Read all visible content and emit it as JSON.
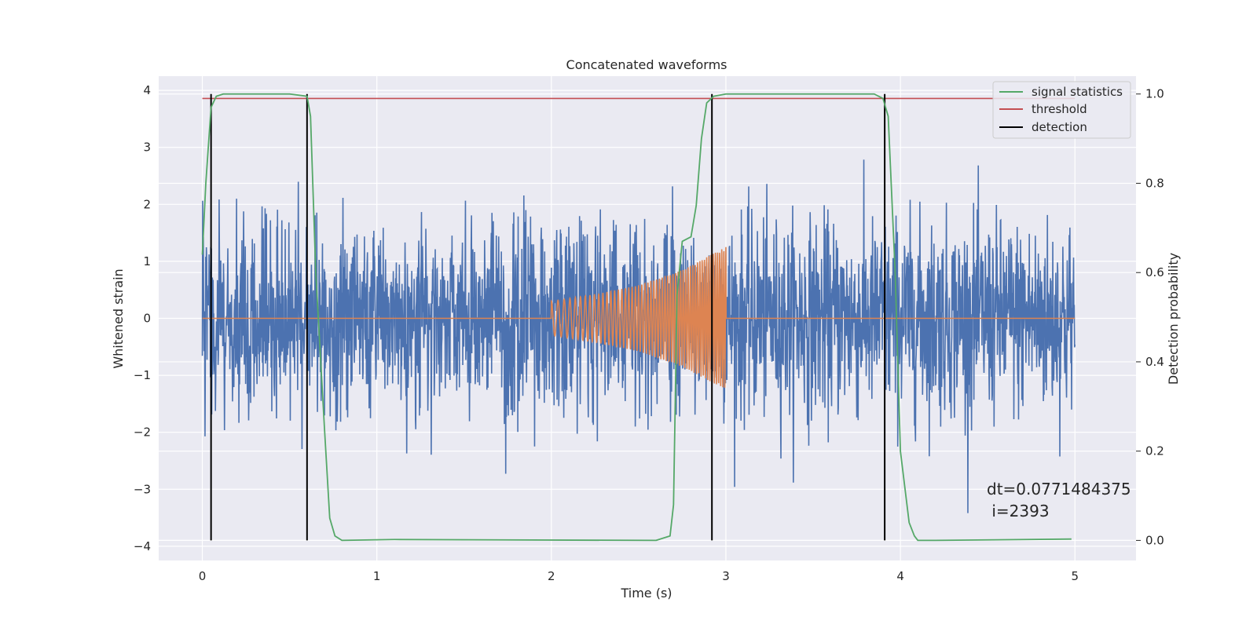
{
  "chart_data": {
    "type": "line",
    "title": "Concatenated waveforms",
    "xlabel": "Time (s)",
    "ylabel": "Whitened strain",
    "ylabel_right": "Detection probability",
    "xlim": [
      -0.25,
      5.35
    ],
    "ylim": [
      -4.25,
      4.25
    ],
    "ylim_right": [
      -0.045,
      1.04
    ],
    "x_ticks": [
      "0",
      "1",
      "2",
      "3",
      "4",
      "5"
    ],
    "y_ticks": [
      "4",
      "3",
      "2",
      "1",
      "0",
      "−1",
      "−2",
      "−3",
      "−4"
    ],
    "y_ticks_right": [
      "1.0",
      "0.8",
      "0.6",
      "0.4",
      "0.2",
      "0.0"
    ],
    "grid": true,
    "legend_position": "top-right",
    "legend": [
      {
        "label": "signal statistics",
        "color": "#55a868"
      },
      {
        "label": "threshold",
        "color": "#c44e52"
      },
      {
        "label": "detection",
        "color": "#000000"
      }
    ],
    "annotation_lines": [
      "dt=0.0771484375",
      " i=2393"
    ],
    "colors": {
      "noise": "#4c72b0",
      "injected_waveform": "#dd8452",
      "signal_statistics": "#55a868",
      "threshold": "#c44e52",
      "detection": "#000000",
      "axes_bg": "#eaeaf2",
      "grid": "#ffffff"
    },
    "series": [
      {
        "axis": "left",
        "color": "#4c72b0",
        "description": "whitened noise, approx. Gaussian, sigma≈0.85, t in [0,5]",
        "x_range": [
          0,
          5
        ],
        "std": 0.85
      },
      {
        "axis": "left",
        "color": "#dd8452",
        "description": "chirp waveform from t=2 to t=3, amplitude growing 0.3→1.25",
        "x": [
          0,
          2.0,
          2.25,
          2.5,
          2.75,
          3.0,
          5.0
        ],
        "amplitude": [
          0,
          0.3,
          0.42,
          0.58,
          0.85,
          1.25,
          0
        ]
      },
      {
        "name": "signal statistics",
        "axis": "right",
        "color": "#55a868",
        "x": [
          0.0,
          0.02,
          0.05,
          0.08,
          0.12,
          0.5,
          0.6,
          0.62,
          0.65,
          0.7,
          0.73,
          0.76,
          0.8,
          1.1,
          2.6,
          2.68,
          2.7,
          2.72,
          2.75,
          2.8,
          2.83,
          2.86,
          2.89,
          2.93,
          3.0,
          3.85,
          3.9,
          3.93,
          3.97,
          4.0,
          4.05,
          4.08,
          4.1,
          4.2,
          4.98
        ],
        "y": [
          0.64,
          0.8,
          0.97,
          0.995,
          1.0,
          1.0,
          0.995,
          0.95,
          0.6,
          0.25,
          0.05,
          0.01,
          0.0,
          0.002,
          0.0,
          0.01,
          0.08,
          0.55,
          0.67,
          0.68,
          0.75,
          0.9,
          0.98,
          0.995,
          1.0,
          1.0,
          0.99,
          0.95,
          0.6,
          0.2,
          0.04,
          0.01,
          0.0,
          0.0,
          0.003
        ]
      },
      {
        "name": "threshold",
        "axis": "right",
        "color": "#c44e52",
        "x": [
          0,
          5
        ],
        "y": [
          0.99,
          0.99
        ]
      }
    ],
    "detections_x": [
      0.05,
      0.6,
      2.92,
      3.91
    ]
  }
}
